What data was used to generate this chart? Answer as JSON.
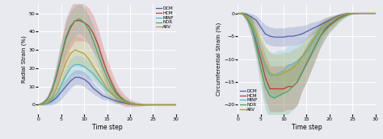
{
  "background_color": "#e8eaf0",
  "grid_color": "#ffffff",
  "x_range": [
    0,
    30
  ],
  "x_ticks": [
    0,
    5,
    10,
    15,
    20,
    25,
    30
  ],
  "xlabel": "Time step",
  "left": {
    "ylabel": "Radial Strain (%)",
    "ylim": [
      -5,
      55
    ],
    "yticks": [
      0,
      10,
      20,
      30,
      40,
      50
    ],
    "legend_loc": "upper right"
  },
  "right": {
    "ylabel": "Circumferential Strain (%)",
    "ylim": [
      -22,
      2
    ],
    "yticks": [
      0,
      -5,
      -10,
      -15,
      -20
    ],
    "legend_loc": "lower left"
  },
  "classes": [
    "DCM",
    "HCM",
    "MINF",
    "NOR",
    "ARV"
  ],
  "colors": {
    "DCM": "#5060a8",
    "HCM": "#cc3333",
    "MINF": "#50b8cc",
    "NOR": "#44a860",
    "ARV": "#b0a030"
  },
  "radial": {
    "DCM": {
      "mean": [
        0,
        0.3,
        0.8,
        2,
        4,
        7,
        10,
        13,
        15,
        15,
        14,
        12,
        9,
        7,
        5,
        4,
        3,
        2,
        1.5,
        1,
        0.5,
        0.2,
        0,
        0,
        0,
        0,
        0,
        0,
        0,
        0,
        0
      ],
      "std": [
        0,
        0.5,
        1,
        2,
        3,
        4,
        4,
        4,
        4,
        4,
        4,
        4,
        3,
        2.5,
        2,
        1.5,
        1.5,
        1.5,
        1,
        0.5,
        0.5,
        0.3,
        0.2,
        0.1,
        0,
        0,
        0,
        0,
        0,
        0,
        0
      ]
    },
    "HCM": {
      "mean": [
        0,
        1,
        3,
        8,
        16,
        26,
        36,
        42,
        46,
        46,
        45,
        43,
        39,
        33,
        25,
        18,
        12,
        7,
        4,
        2,
        1,
        0.5,
        0.2,
        0,
        0,
        0,
        0,
        0,
        0,
        0,
        0
      ],
      "std": [
        0,
        1,
        2,
        4,
        7,
        9,
        11,
        11,
        11,
        11,
        10,
        10,
        10,
        9,
        8,
        7,
        6,
        5,
        4,
        3,
        2,
        1.5,
        1,
        0.5,
        0.3,
        0.2,
        0.1,
        0,
        0,
        0,
        0
      ]
    },
    "MINF": {
      "mean": [
        0,
        0.3,
        1,
        3,
        6,
        11,
        16,
        20,
        22,
        22,
        21,
        19,
        17,
        14,
        11,
        8,
        6,
        4,
        2.5,
        1.5,
        0.8,
        0.3,
        0,
        0,
        0,
        0,
        0,
        0,
        0,
        0,
        0
      ],
      "std": [
        0,
        0.5,
        1,
        2,
        3,
        4,
        5,
        5,
        5,
        5,
        5,
        5,
        4,
        4,
        3,
        3,
        2,
        2,
        1.5,
        1,
        0.8,
        0.5,
        0.3,
        0.1,
        0,
        0,
        0,
        0,
        0,
        0,
        0
      ]
    },
    "NOR": {
      "mean": [
        0,
        1,
        3,
        8,
        17,
        27,
        37,
        43,
        46,
        47,
        45,
        41,
        35,
        28,
        21,
        15,
        10,
        6,
        3.5,
        2,
        1,
        0.4,
        0.1,
        0,
        0,
        0,
        0,
        0,
        0,
        0,
        0
      ],
      "std": [
        0,
        1,
        2,
        3,
        5,
        7,
        8,
        8,
        8,
        8,
        8,
        8,
        8,
        7,
        6,
        5,
        4,
        3,
        2,
        1.5,
        1,
        0.5,
        0.3,
        0.1,
        0,
        0,
        0,
        0,
        0,
        0,
        0
      ]
    },
    "ARV": {
      "mean": [
        0,
        0.5,
        1.5,
        4,
        9,
        16,
        23,
        28,
        30,
        29,
        28,
        25,
        21,
        17,
        13,
        9,
        6,
        4,
        2.5,
        1.5,
        0.8,
        0.3,
        0,
        0,
        0,
        0,
        0,
        0,
        0,
        0,
        0
      ],
      "std": [
        0,
        0.5,
        1,
        2,
        4,
        6,
        8,
        8,
        8,
        8,
        8,
        7,
        6,
        5,
        4,
        4,
        3,
        3,
        2,
        1.5,
        1,
        0.8,
        0.5,
        0.2,
        0,
        0,
        0,
        0,
        0,
        0,
        0
      ]
    }
  },
  "circumferential": {
    "DCM": {
      "mean": [
        0,
        0,
        -0.3,
        -0.8,
        -1.5,
        -3,
        -4.5,
        -5,
        -5.2,
        -5.2,
        -5.2,
        -5,
        -5,
        -4.8,
        -4.5,
        -4,
        -3.5,
        -3,
        -2.5,
        -2,
        -1.5,
        -1,
        -0.5,
        -0.2,
        0,
        0,
        0,
        0,
        0,
        0,
        0
      ],
      "std": [
        0,
        0.2,
        0.5,
        0.8,
        1,
        1.5,
        2,
        2,
        2,
        2,
        2,
        2,
        2,
        2,
        1.8,
        1.5,
        1.5,
        1.2,
        1,
        1,
        0.8,
        0.6,
        0.4,
        0.3,
        0.2,
        0.1,
        0,
        0,
        0,
        0,
        0
      ]
    },
    "HCM": {
      "mean": [
        0,
        0,
        -1,
        -3,
        -6,
        -10,
        -14,
        -16.5,
        -16.5,
        -16.5,
        -16.5,
        -16,
        -16,
        -15,
        -13,
        -11,
        -9,
        -7,
        -5,
        -3.5,
        -2.5,
        -1.8,
        -1,
        -0.5,
        -0.2,
        0,
        0,
        0,
        0,
        0,
        0
      ],
      "std": [
        0,
        0.3,
        1,
        2,
        3,
        4,
        5,
        5,
        5,
        5,
        5,
        5,
        5,
        5,
        4,
        4,
        3.5,
        3,
        2.5,
        2,
        1.5,
        1.2,
        0.8,
        0.5,
        0.3,
        0.2,
        0.1,
        0,
        0,
        0,
        0
      ]
    },
    "MINF": {
      "mean": [
        0,
        0,
        -0.8,
        -2.5,
        -5.5,
        -9,
        -12,
        -13.5,
        -13.5,
        -13,
        -12.5,
        -11.5,
        -11,
        -10.5,
        -9.5,
        -8.5,
        -7,
        -5.5,
        -4,
        -3,
        -2,
        -1.3,
        -0.8,
        -0.3,
        -0.1,
        0,
        0,
        0,
        0,
        0,
        0
      ],
      "std": [
        0,
        0.3,
        0.8,
        1.8,
        2.8,
        3.5,
        4.5,
        5,
        5,
        5,
        4.5,
        4.5,
        4,
        4,
        3.5,
        3,
        2.5,
        2.5,
        2,
        1.5,
        1.2,
        0.8,
        0.5,
        0.3,
        0.2,
        0.1,
        0,
        0,
        0,
        0,
        0
      ]
    },
    "NOR": {
      "mean": [
        0,
        0,
        -1,
        -3,
        -7,
        -12,
        -16,
        -18,
        -18.5,
        -18,
        -17.5,
        -17,
        -16,
        -15,
        -13,
        -11,
        -9,
        -7,
        -5,
        -3.8,
        -2.8,
        -2,
        -1.3,
        -0.8,
        -0.3,
        0,
        0,
        0,
        0,
        0,
        0
      ],
      "std": [
        0,
        0.3,
        1,
        2,
        3,
        4,
        5,
        5,
        5,
        5,
        5,
        5,
        5,
        5,
        4,
        4,
        3.5,
        3,
        2.5,
        2,
        1.5,
        1.2,
        0.8,
        0.5,
        0.3,
        0.2,
        0.1,
        0,
        0,
        0,
        0
      ]
    },
    "ARV": {
      "mean": [
        0,
        0,
        -0.8,
        -2,
        -4.5,
        -8,
        -11,
        -13,
        -13.5,
        -13.5,
        -13,
        -12.5,
        -12,
        -11,
        -9.5,
        -8,
        -6.5,
        -5,
        -3.5,
        -2.5,
        -1.8,
        -1.2,
        -0.7,
        -0.3,
        -0.1,
        0,
        0,
        0,
        0,
        0,
        0
      ],
      "std": [
        0,
        0.3,
        0.8,
        1.5,
        2.5,
        3.5,
        4,
        4.5,
        4.5,
        4.5,
        4.5,
        4,
        4,
        3.5,
        3,
        2.8,
        2.5,
        2,
        1.8,
        1.5,
        1.2,
        0.8,
        0.5,
        0.3,
        0.2,
        0.1,
        0,
        0,
        0,
        0,
        0
      ]
    }
  }
}
